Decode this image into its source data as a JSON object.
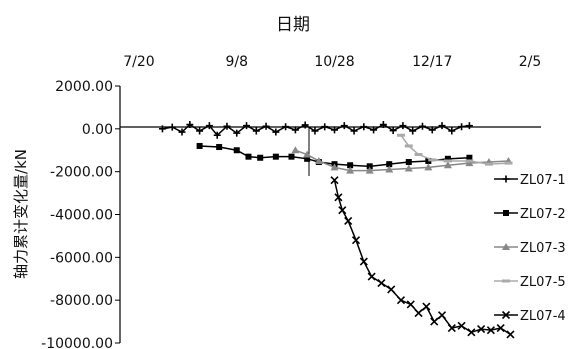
{
  "chart_data": {
    "type": "line",
    "title": "",
    "xlabel": "日期",
    "ylabel": "轴力累计变化量/kN",
    "x_ticks": [
      "7/20",
      "9/8",
      "10/28",
      "12/17",
      "2/5"
    ],
    "x_range": [
      "7/20",
      "2/5"
    ],
    "y_ticks": [
      "2000.00",
      "0.00",
      "-2000.00",
      "-4000.00",
      "-6000.00",
      "-8000.00",
      "-10000.00"
    ],
    "ylim": [
      -10000,
      2000
    ],
    "x_axis_position": "top",
    "grid": false,
    "legend_position": "right",
    "series": [
      {
        "name": "ZL07-1",
        "marker": "plus",
        "color": "#000000",
        "points": [
          [
            "8/1",
            0
          ],
          [
            "8/6",
            80
          ],
          [
            "8/11",
            -150
          ],
          [
            "8/15",
            200
          ],
          [
            "8/20",
            -100
          ],
          [
            "8/25",
            150
          ],
          [
            "8/29",
            -300
          ],
          [
            "9/3",
            120
          ],
          [
            "9/8",
            -200
          ],
          [
            "9/13",
            150
          ],
          [
            "9/18",
            -100
          ],
          [
            "9/23",
            120
          ],
          [
            "9/28",
            -150
          ],
          [
            "10/3",
            100
          ],
          [
            "10/8",
            -50
          ],
          [
            "10/13",
            180
          ],
          [
            "10/18",
            -100
          ],
          [
            "10/23",
            100
          ],
          [
            "10/28",
            -50
          ],
          [
            "11/2",
            150
          ],
          [
            "11/7",
            -100
          ],
          [
            "11/12",
            100
          ],
          [
            "11/17",
            -50
          ],
          [
            "11/22",
            200
          ],
          [
            "11/27",
            -80
          ],
          [
            "12/2",
            150
          ],
          [
            "12/7",
            -100
          ],
          [
            "12/12",
            120
          ],
          [
            "12/17",
            -50
          ],
          [
            "12/22",
            150
          ],
          [
            "12/27",
            -100
          ],
          [
            "1/1",
            100
          ],
          [
            "1/5",
            150
          ]
        ]
      },
      {
        "name": "ZL07-2",
        "marker": "square",
        "color": "#000000",
        "points": [
          [
            "8/20",
            -800
          ],
          [
            "8/30",
            -850
          ],
          [
            "9/8",
            -1000
          ],
          [
            "9/14",
            -1300
          ],
          [
            "9/20",
            -1350
          ],
          [
            "9/28",
            -1300
          ],
          [
            "10/6",
            -1300
          ],
          [
            "10/14",
            -1400
          ],
          [
            "10/20",
            -1550
          ],
          [
            "10/28",
            -1650
          ],
          [
            "11/5",
            -1700
          ],
          [
            "11/15",
            -1750
          ],
          [
            "11/25",
            -1650
          ],
          [
            "12/5",
            -1550
          ],
          [
            "12/15",
            -1500
          ],
          [
            "12/25",
            -1400
          ],
          [
            "1/5",
            -1350
          ]
        ]
      },
      {
        "name": "ZL07-3",
        "marker": "triangle",
        "color": "#888888",
        "points": [
          [
            "10/8",
            -1000
          ],
          [
            "10/14",
            -1200
          ],
          [
            "10/20",
            -1500
          ],
          [
            "10/28",
            -1800
          ],
          [
            "11/5",
            -1950
          ],
          [
            "11/15",
            -1950
          ],
          [
            "11/25",
            -1900
          ],
          [
            "12/5",
            -1850
          ],
          [
            "12/15",
            -1800
          ],
          [
            "12/25",
            -1700
          ],
          [
            "1/5",
            -1600
          ],
          [
            "1/15",
            -1550
          ],
          [
            "1/25",
            -1500
          ]
        ]
      },
      {
        "name": "ZL07-5",
        "marker": "dash",
        "color": "#aaaaaa",
        "points": [
          [
            "12/1",
            -300
          ],
          [
            "12/5",
            -800
          ],
          [
            "12/10",
            -1200
          ],
          [
            "12/17",
            -1450
          ],
          [
            "12/25",
            -1500
          ],
          [
            "1/5",
            -1500
          ],
          [
            "1/15",
            -1650
          ],
          [
            "1/25",
            -1600
          ]
        ]
      },
      {
        "name": "ZL07-4",
        "marker": "x",
        "color": "#000000",
        "points": [
          [
            "10/28",
            -2400
          ],
          [
            "10/30",
            -3200
          ],
          [
            "11/1",
            -3800
          ],
          [
            "11/4",
            -4300
          ],
          [
            "11/8",
            -5200
          ],
          [
            "11/12",
            -6200
          ],
          [
            "11/16",
            -6900
          ],
          [
            "11/21",
            -7200
          ],
          [
            "11/26",
            -7500
          ],
          [
            "12/1",
            -8000
          ],
          [
            "12/6",
            -8200
          ],
          [
            "12/10",
            -8600
          ],
          [
            "12/14",
            -8300
          ],
          [
            "12/18",
            -9000
          ],
          [
            "12/22",
            -8700
          ],
          [
            "12/27",
            -9300
          ],
          [
            "1/1",
            -9200
          ],
          [
            "1/6",
            -9500
          ],
          [
            "1/11",
            -9350
          ],
          [
            "1/16",
            -9400
          ],
          [
            "1/21",
            -9300
          ],
          [
            "1/26",
            -9600
          ]
        ]
      }
    ]
  }
}
